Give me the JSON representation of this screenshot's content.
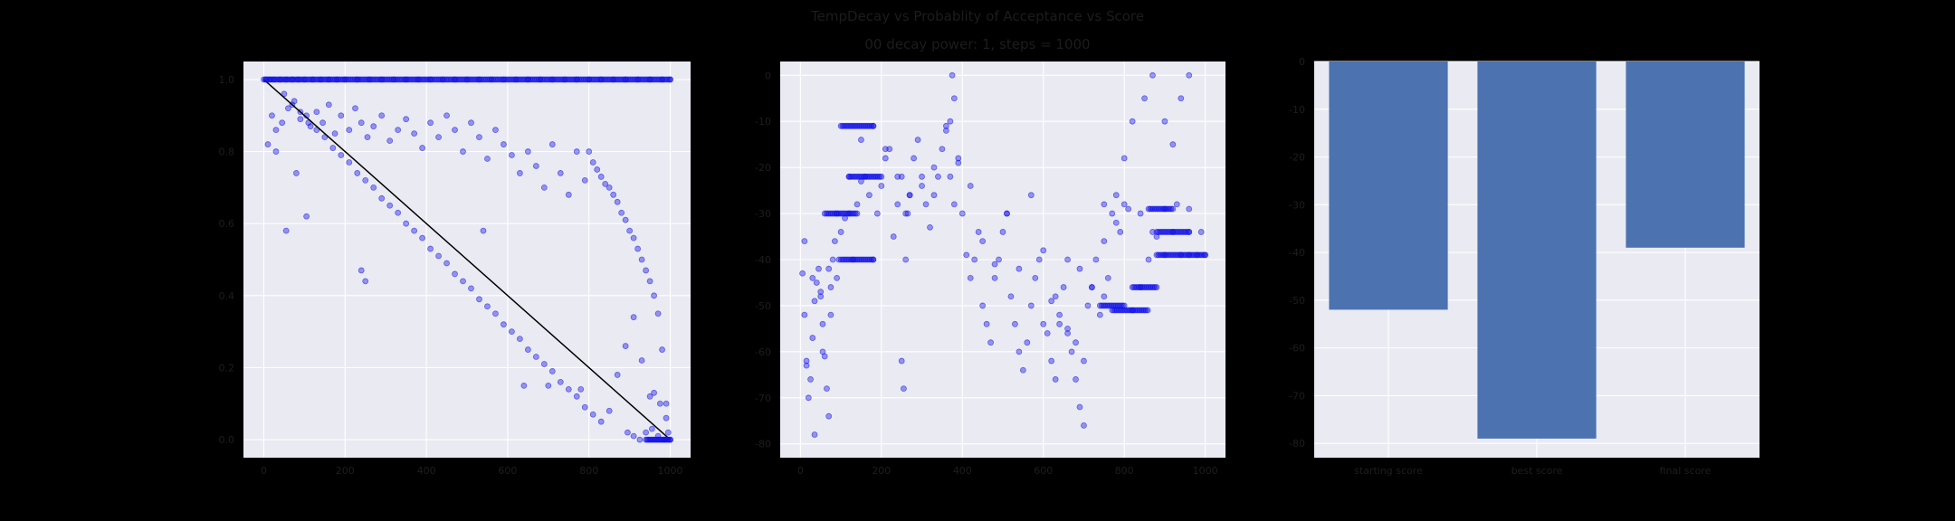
{
  "figure": {
    "title": "TempDecay vs Probablity of Acceptance vs Score",
    "subtitle": "00 decay power: 1, steps = 1000"
  },
  "colors": {
    "background": "#000000",
    "axes_face": "#eaeaf2",
    "scatter": "#1010e8",
    "line": "#000000",
    "bar": "#4c72b0"
  },
  "chart_data": [
    {
      "type": "scatter",
      "title": "",
      "xlabel": "",
      "ylabel": "",
      "xlim": [
        -50,
        1050
      ],
      "ylim": [
        -0.05,
        1.05
      ],
      "xticks": [
        0,
        200,
        400,
        600,
        800,
        1000
      ],
      "yticks": [
        0.0,
        0.2,
        0.4,
        0.6,
        0.8,
        1.0
      ],
      "xtick_labels": [
        "0",
        "200",
        "400",
        "600",
        "800",
        "1000"
      ],
      "ytick_labels": [
        "0.0",
        "0.2",
        "0.4",
        "0.6",
        "0.8",
        "1.0"
      ],
      "grid": true,
      "series": [
        {
          "kind": "points",
          "x": [
            5,
            15,
            25,
            40,
            55,
            70,
            85,
            100,
            120,
            140,
            160,
            180,
            200,
            230,
            260,
            290,
            320,
            350,
            380,
            410,
            440,
            470,
            500,
            530,
            560,
            590,
            620,
            650,
            680,
            710,
            740,
            770,
            800,
            830,
            860,
            890,
            920,
            950,
            980,
            1000,
            10,
            20,
            30,
            45,
            60,
            75,
            90,
            105,
            115,
            130,
            145,
            160,
            175,
            190,
            210,
            225,
            240,
            255,
            270,
            290,
            310,
            330,
            350,
            370,
            390,
            410,
            430,
            450,
            470,
            490,
            510,
            530,
            550,
            570,
            590,
            610,
            630,
            650,
            670,
            690,
            710,
            730,
            750,
            770,
            790,
            50,
            70,
            90,
            110,
            130,
            150,
            170,
            190,
            210,
            230,
            250,
            270,
            290,
            310,
            330,
            350,
            370,
            390,
            410,
            430,
            450,
            470,
            490,
            510,
            530,
            550,
            570,
            590,
            610,
            630,
            650,
            670,
            690,
            710,
            730,
            750,
            770,
            790,
            810,
            830,
            850,
            870,
            890,
            910,
            930,
            950,
            800,
            810,
            820,
            830,
            840,
            850,
            860,
            870,
            880,
            890,
            900,
            910,
            920,
            930,
            940,
            950,
            960,
            970,
            980,
            990,
            30,
            55,
            80,
            105,
            240,
            250,
            540,
            640,
            700,
            780,
            960,
            975,
            990,
            995,
            1000,
            985,
            970,
            955,
            940,
            925,
            910,
            895
          ],
          "y": [
            1,
            1,
            1,
            1,
            1,
            1,
            1,
            1,
            1,
            1,
            1,
            1,
            1,
            1,
            1,
            1,
            1,
            1,
            1,
            1,
            1,
            1,
            1,
            1,
            1,
            1,
            1,
            1,
            1,
            1,
            1,
            1,
            1,
            1,
            1,
            1,
            1,
            1,
            1,
            1,
            0.82,
            0.9,
            0.86,
            0.88,
            0.92,
            0.94,
            0.89,
            0.9,
            0.87,
            0.91,
            0.88,
            0.93,
            0.85,
            0.9,
            0.86,
            0.92,
            0.88,
            0.84,
            0.87,
            0.9,
            0.83,
            0.86,
            0.89,
            0.85,
            0.81,
            0.88,
            0.84,
            0.9,
            0.86,
            0.8,
            0.88,
            0.84,
            0.78,
            0.86,
            0.82,
            0.79,
            0.74,
            0.8,
            0.76,
            0.7,
            0.82,
            0.74,
            0.68,
            0.8,
            0.72,
            0.96,
            0.93,
            0.91,
            0.88,
            0.86,
            0.84,
            0.81,
            0.79,
            0.77,
            0.74,
            0.72,
            0.7,
            0.67,
            0.65,
            0.63,
            0.6,
            0.58,
            0.56,
            0.53,
            0.51,
            0.49,
            0.46,
            0.44,
            0.42,
            0.39,
            0.37,
            0.35,
            0.32,
            0.3,
            0.28,
            0.25,
            0.23,
            0.21,
            0.19,
            0.16,
            0.14,
            0.12,
            0.09,
            0.07,
            0.05,
            0.08,
            0.18,
            0.26,
            0.34,
            0.22,
            0.12,
            0.8,
            0.77,
            0.75,
            0.73,
            0.71,
            0.7,
            0.68,
            0.66,
            0.63,
            0.61,
            0.58,
            0.56,
            0.53,
            0.5,
            0.47,
            0.44,
            0.4,
            0.35,
            0.25,
            0.1,
            0.8,
            0.58,
            0.74,
            0.62,
            0.47,
            0.44,
            0.58,
            0.15,
            0.15,
            0.14,
            0.13,
            0.1,
            0.06,
            0.02,
            0.0,
            0.0,
            0.01,
            0.03,
            0.02,
            0.0,
            0.01,
            0.02
          ]
        },
        {
          "kind": "line",
          "x": [
            0,
            1000
          ],
          "y": [
            1.0,
            0.0
          ]
        }
      ]
    },
    {
      "type": "scatter",
      "title": "",
      "xlabel": "",
      "ylabel": "",
      "xlim": [
        -50,
        1050
      ],
      "ylim": [
        -83,
        3
      ],
      "xticks": [
        0,
        200,
        400,
        600,
        800,
        1000
      ],
      "yticks": [
        0,
        -10,
        -20,
        -30,
        -40,
        -50,
        -60,
        -70,
        -80
      ],
      "xtick_labels": [
        "0",
        "200",
        "400",
        "600",
        "800",
        "1000"
      ],
      "ytick_labels": [
        "0",
        "-10",
        "-20",
        "-30",
        "-40",
        "-50",
        "-60",
        "-70",
        "-80"
      ],
      "grid": true,
      "series": [
        {
          "kind": "points",
          "x": [
            5,
            10,
            15,
            20,
            25,
            30,
            35,
            40,
            45,
            50,
            55,
            60,
            65,
            70,
            75,
            80,
            85,
            90,
            95,
            100,
            110,
            120,
            130,
            140,
            150,
            160,
            170,
            180,
            190,
            200,
            210,
            220,
            230,
            240,
            250,
            260,
            270,
            280,
            290,
            300,
            310,
            320,
            330,
            340,
            350,
            360,
            370,
            380,
            390,
            400,
            410,
            420,
            430,
            440,
            450,
            460,
            470,
            480,
            490,
            500,
            510,
            520,
            530,
            540,
            550,
            560,
            570,
            580,
            590,
            600,
            610,
            620,
            630,
            640,
            650,
            660,
            670,
            680,
            690,
            700,
            710,
            720,
            730,
            740,
            750,
            760,
            770,
            780,
            790,
            800,
            820,
            840,
            860,
            880,
            900,
            920,
            940,
            960,
            980,
            1000,
            10,
            30,
            50,
            70,
            90,
            120,
            150,
            180,
            210,
            240,
            270,
            300,
            330,
            360,
            390,
            420,
            450,
            480,
            510,
            540,
            570,
            600,
            630,
            660,
            690,
            720,
            750,
            780,
            810,
            840,
            870,
            900,
            930,
            960,
            990,
            15,
            35,
            55,
            75,
            250,
            255,
            260,
            265,
            370,
            375,
            380,
            620,
            640,
            660,
            680,
            700,
            750,
            800,
            820,
            850,
            870,
            900,
            920,
            940,
            960
          ],
          "y": [
            -43,
            -52,
            -62,
            -70,
            -66,
            -57,
            -49,
            -45,
            -42,
            -47,
            -54,
            -61,
            -68,
            -74,
            -46,
            -40,
            -36,
            -44,
            -40,
            -34,
            -31,
            -30,
            -40,
            -28,
            -23,
            -22,
            -26,
            -40,
            -30,
            -24,
            -18,
            -16,
            -35,
            -28,
            -22,
            -30,
            -26,
            -18,
            -14,
            -22,
            -28,
            -33,
            -26,
            -22,
            -16,
            -12,
            -22,
            -28,
            -19,
            -30,
            -39,
            -44,
            -40,
            -34,
            -50,
            -54,
            -58,
            -44,
            -40,
            -34,
            -30,
            -48,
            -54,
            -60,
            -64,
            -58,
            -50,
            -44,
            -40,
            -54,
            -56,
            -62,
            -66,
            -52,
            -46,
            -40,
            -60,
            -66,
            -72,
            -76,
            -50,
            -46,
            -40,
            -52,
            -48,
            -44,
            -30,
            -26,
            -34,
            -28,
            -51,
            -46,
            -40,
            -35,
            -29,
            -34,
            -39,
            -34,
            -39,
            -39,
            -36,
            -44,
            -48,
            -42,
            -30,
            -22,
            -14,
            -11,
            -16,
            -22,
            -26,
            -24,
            -20,
            -11,
            -18,
            -24,
            -36,
            -41,
            -30,
            -42,
            -26,
            -38,
            -48,
            -55,
            -42,
            -46,
            -36,
            -32,
            -29,
            -30,
            -34,
            -39,
            -28,
            -29,
            -34,
            -63,
            -78,
            -60,
            -52,
            -62,
            -68,
            -40,
            -30,
            -10,
            0,
            -5,
            -49,
            -54,
            -56,
            -58,
            -62,
            -28,
            -18,
            -10,
            -5,
            0,
            -10,
            -15,
            -5,
            0
          ],
          "dense_runs": [
            {
              "x_from": 100,
              "x_to": 180,
              "y": -11
            },
            {
              "x_from": 120,
              "x_to": 200,
              "y": -22
            },
            {
              "x_from": 60,
              "x_to": 140,
              "y": -30
            },
            {
              "x_from": 100,
              "x_to": 180,
              "y": -40
            },
            {
              "x_from": 740,
              "x_to": 800,
              "y": -50
            },
            {
              "x_from": 820,
              "x_to": 880,
              "y": -46
            },
            {
              "x_from": 860,
              "x_to": 920,
              "y": -29
            },
            {
              "x_from": 880,
              "x_to": 960,
              "y": -34
            },
            {
              "x_from": 880,
              "x_to": 960,
              "y": -39
            },
            {
              "x_from": 960,
              "x_to": 1000,
              "y": -39
            },
            {
              "x_from": 770,
              "x_to": 860,
              "y": -51
            }
          ]
        }
      ]
    },
    {
      "type": "bar",
      "title": "",
      "xlabel": "",
      "ylabel": "",
      "categories": [
        "starting score",
        "best score",
        "final score"
      ],
      "values": [
        -52,
        -79,
        -39
      ],
      "ylim": [
        -83,
        0
      ],
      "yticks": [
        0,
        -10,
        -20,
        -30,
        -40,
        -50,
        -60,
        -70,
        -80
      ],
      "ytick_labels": [
        "0",
        "-10",
        "-20",
        "-30",
        "-40",
        "-50",
        "-60",
        "-70",
        "-80"
      ],
      "grid": true
    }
  ]
}
